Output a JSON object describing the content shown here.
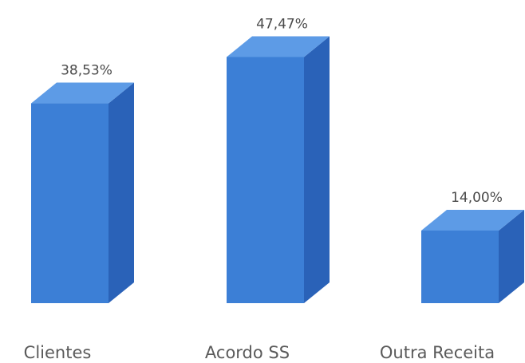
{
  "chart_data": {
    "type": "bar",
    "style": "3d-column",
    "categories": [
      "Clientes",
      "Acordo SS",
      "Outra Receita"
    ],
    "values": [
      38.53,
      47.47,
      14.0
    ],
    "data_labels": [
      "38,53%",
      "47,47%",
      "14,00%"
    ],
    "title": "",
    "xlabel": "",
    "ylabel": "",
    "ylim": [
      0,
      50
    ],
    "grid": false,
    "legend": "none",
    "colors": {
      "front": "#3c7fd6",
      "side": "#2a62b8",
      "top": "#5d9be6"
    }
  }
}
